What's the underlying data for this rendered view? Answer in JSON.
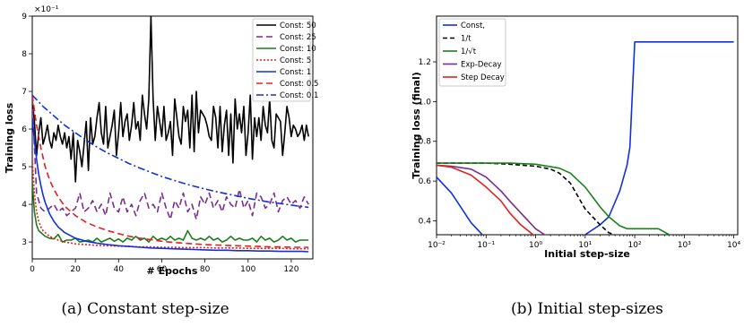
{
  "chart_data": [
    {
      "type": "line",
      "caption": "(a) Constant step-size",
      "xlabel": "# Epochs",
      "ylabel": "Training loss",
      "offset_label": "×10⁻¹",
      "xlim": [
        0,
        130
      ],
      "ylim": [
        2.55,
        9.0
      ],
      "xticks": [
        0,
        20,
        40,
        60,
        80,
        100,
        120
      ],
      "yticks": [
        3,
        4,
        5,
        6,
        7,
        8,
        9
      ],
      "legend_position": "top-right",
      "series": [
        {
          "name": "Const: 50",
          "color": "#000000",
          "dash": "solid",
          "x": [
            0,
            1,
            2,
            3,
            4,
            5,
            6,
            7,
            8,
            9,
            10,
            11,
            12,
            13,
            14,
            15,
            16,
            17,
            18,
            19,
            20,
            21,
            22,
            23,
            24,
            25,
            26,
            27,
            28,
            29,
            30,
            31,
            32,
            33,
            34,
            35,
            36,
            37,
            38,
            39,
            40,
            41,
            42,
            43,
            44,
            45,
            46,
            47,
            48,
            49,
            50,
            51,
            52,
            53,
            54,
            55,
            56,
            57,
            58,
            59,
            60,
            61,
            62,
            63,
            64,
            65,
            66,
            67,
            68,
            69,
            70,
            71,
            72,
            73,
            74,
            75,
            76,
            77,
            78,
            79,
            80,
            81,
            82,
            83,
            84,
            85,
            86,
            87,
            88,
            89,
            90,
            91,
            92,
            93,
            94,
            95,
            96,
            97,
            98,
            99,
            100,
            101,
            102,
            103,
            104,
            105,
            106,
            107,
            108,
            109,
            110,
            111,
            112,
            113,
            114,
            115,
            116,
            117,
            118,
            119,
            120,
            121,
            122,
            123,
            124,
            125,
            126,
            127,
            128
          ],
          "y": [
            6.8,
            6.2,
            5.3,
            5.9,
            6.3,
            5.6,
            5.8,
            6.1,
            5.7,
            5.5,
            5.9,
            5.7,
            6.1,
            5.8,
            5.6,
            5.9,
            5.5,
            5.8,
            5.2,
            5.9,
            4.6,
            5.7,
            5.4,
            5.0,
            5.6,
            6.2,
            4.9,
            6.3,
            5.6,
            5.8,
            6.3,
            6.7,
            5.9,
            5.6,
            6.6,
            5.5,
            5.8,
            6.1,
            6.5,
            5.3,
            5.9,
            6.7,
            5.8,
            6.2,
            6.4,
            5.7,
            6.1,
            6.7,
            6.0,
            6.2,
            5.7,
            6.9,
            6.4,
            6.0,
            6.8,
            9.0,
            6.8,
            5.7,
            6.6,
            6.2,
            5.8,
            6.6,
            5.7,
            5.9,
            6.2,
            5.3,
            6.8,
            6.3,
            5.8,
            5.6,
            6.6,
            6.2,
            6.5,
            5.5,
            6.9,
            5.4,
            7.0,
            5.9,
            6.5,
            6.4,
            6.3,
            6.1,
            5.8,
            5.7,
            6.6,
            6.3,
            5.5,
            6.6,
            5.4,
            6.1,
            6.5,
            5.3,
            6.4,
            5.1,
            6.8,
            6.0,
            6.4,
            5.9,
            6.6,
            5.3,
            5.9,
            6.9,
            5.2,
            6.3,
            5.8,
            6.3,
            5.7,
            6.6,
            6.1,
            5.9,
            6.8,
            5.7,
            5.5,
            6.4,
            6.3,
            6.2,
            5.3,
            5.9,
            6.6,
            6.3,
            5.8,
            6.1,
            6.0,
            5.8,
            5.9,
            6.1,
            5.7,
            6.1,
            5.8
          ]
        },
        {
          "name": "Const: 25",
          "color": "#7b2d8e",
          "dash": "7,4",
          "x": [
            0,
            2,
            4,
            6,
            8,
            10,
            12,
            14,
            16,
            18,
            20,
            22,
            24,
            26,
            28,
            30,
            32,
            34,
            36,
            38,
            40,
            42,
            44,
            46,
            48,
            50,
            52,
            54,
            56,
            58,
            60,
            62,
            64,
            66,
            68,
            70,
            72,
            74,
            76,
            78,
            80,
            82,
            84,
            86,
            88,
            90,
            92,
            94,
            96,
            98,
            100,
            102,
            104,
            106,
            108,
            110,
            112,
            114,
            116,
            118,
            120,
            122,
            124,
            126,
            128
          ],
          "y": [
            6.8,
            4.3,
            3.9,
            3.8,
            3.9,
            4.0,
            3.8,
            3.9,
            3.7,
            3.8,
            3.9,
            4.3,
            3.8,
            3.9,
            4.1,
            3.8,
            4.0,
            3.7,
            4.3,
            3.9,
            3.8,
            4.2,
            3.8,
            4.0,
            3.7,
            4.1,
            4.3,
            3.9,
            4.0,
            3.8,
            4.3,
            3.9,
            3.6,
            4.1,
            3.9,
            4.3,
            3.8,
            4.0,
            3.6,
            4.2,
            4.0,
            4.3,
            3.9,
            4.1,
            3.8,
            4.2,
            4.0,
            3.9,
            4.4,
            3.9,
            4.1,
            3.7,
            4.3,
            4.2,
            3.9,
            4.0,
            4.3,
            3.8,
            4.1,
            4.2,
            4.0,
            4.1,
            3.9,
            4.2,
            4.0
          ]
        },
        {
          "name": "Const: 10",
          "color": "#1a7f1a",
          "dash": "solid",
          "x": [
            0,
            1,
            2,
            3,
            4,
            5,
            6,
            8,
            10,
            12,
            14,
            16,
            18,
            20,
            22,
            24,
            26,
            28,
            30,
            32,
            34,
            36,
            38,
            40,
            42,
            44,
            46,
            48,
            50,
            52,
            54,
            56,
            58,
            60,
            62,
            64,
            66,
            68,
            70,
            72,
            74,
            76,
            78,
            80,
            82,
            84,
            86,
            88,
            90,
            92,
            94,
            96,
            98,
            100,
            102,
            104,
            106,
            108,
            110,
            112,
            114,
            116,
            118,
            120,
            122,
            124,
            126,
            128
          ],
          "y": [
            4.6,
            3.8,
            3.45,
            3.3,
            3.25,
            3.2,
            3.15,
            3.1,
            3.08,
            3.2,
            3.0,
            3.05,
            3.05,
            3.1,
            3.0,
            3.02,
            3.05,
            3.0,
            3.1,
            3.0,
            3.05,
            3.1,
            3.02,
            3.08,
            3.0,
            3.1,
            3.05,
            3.15,
            3.05,
            3.1,
            3.0,
            3.15,
            3.05,
            3.1,
            3.05,
            3.15,
            3.05,
            3.1,
            3.05,
            3.3,
            3.1,
            3.05,
            3.1,
            3.05,
            3.15,
            3.05,
            3.1,
            3.0,
            3.05,
            3.15,
            3.05,
            3.1,
            3.05,
            3.05,
            3.1,
            3.0,
            3.15,
            3.05,
            3.1,
            3.0,
            3.05,
            3.15,
            3.05,
            3.1,
            3.0,
            3.05,
            3.05,
            3.05
          ]
        },
        {
          "name": "Const: 5",
          "color": "#e6201e",
          "dash": "2,2",
          "x": [
            0,
            1,
            2,
            3,
            4,
            5,
            6,
            8,
            10,
            12,
            15,
            20,
            25,
            30,
            35,
            40,
            45,
            50,
            55,
            60,
            65,
            70,
            75,
            80,
            85,
            90,
            95,
            100,
            105,
            110,
            115,
            120,
            125,
            128
          ],
          "y": [
            5.2,
            4.3,
            3.8,
            3.55,
            3.4,
            3.3,
            3.25,
            3.15,
            3.1,
            3.05,
            3.0,
            2.95,
            2.93,
            2.91,
            2.9,
            2.89,
            2.88,
            2.87,
            2.87,
            2.86,
            2.86,
            2.85,
            2.85,
            2.85,
            2.84,
            2.84,
            2.84,
            2.83,
            2.83,
            2.83,
            2.83,
            2.82,
            2.82,
            2.82
          ]
        },
        {
          "name": "Const: 1",
          "color": "#1030e0",
          "dash": "solid",
          "x": [
            0,
            1,
            2,
            3,
            4,
            5,
            6,
            8,
            10,
            12,
            15,
            20,
            25,
            30,
            35,
            40,
            45,
            50,
            55,
            60,
            65,
            70,
            75,
            80,
            85,
            90,
            95,
            100,
            105,
            110,
            115,
            120,
            125,
            128
          ],
          "y": [
            6.3,
            5.7,
            5.2,
            4.8,
            4.5,
            4.25,
            4.05,
            3.75,
            3.55,
            3.4,
            3.25,
            3.1,
            3.02,
            2.97,
            2.93,
            2.9,
            2.88,
            2.86,
            2.84,
            2.83,
            2.82,
            2.81,
            2.8,
            2.79,
            2.78,
            2.78,
            2.77,
            2.77,
            2.76,
            2.76,
            2.75,
            2.75,
            2.75,
            2.74
          ]
        },
        {
          "name": "Const: 0.5",
          "color": "#e6201e",
          "dash": "7,4",
          "x": [
            0,
            1,
            2,
            3,
            4,
            5,
            6,
            8,
            10,
            12,
            15,
            20,
            25,
            30,
            35,
            40,
            45,
            50,
            55,
            60,
            65,
            70,
            75,
            80,
            85,
            90,
            95,
            100,
            105,
            110,
            115,
            120,
            125,
            128
          ],
          "y": [
            6.9,
            6.5,
            6.1,
            5.8,
            5.5,
            5.25,
            5.0,
            4.65,
            4.4,
            4.2,
            3.95,
            3.7,
            3.52,
            3.4,
            3.3,
            3.22,
            3.15,
            3.1,
            3.06,
            3.02,
            2.99,
            2.97,
            2.95,
            2.93,
            2.92,
            2.91,
            2.9,
            2.89,
            2.88,
            2.87,
            2.87,
            2.86,
            2.86,
            2.86
          ]
        },
        {
          "name": "Const: 0.1",
          "color": "#1030e0",
          "dash": "8,3,2,3",
          "x": [
            0,
            5,
            10,
            15,
            20,
            25,
            30,
            35,
            40,
            45,
            50,
            55,
            60,
            65,
            70,
            75,
            80,
            85,
            90,
            95,
            100,
            105,
            110,
            115,
            120,
            125,
            128
          ],
          "y": [
            6.9,
            6.6,
            6.35,
            6.1,
            5.9,
            5.7,
            5.52,
            5.36,
            5.22,
            5.08,
            4.96,
            4.85,
            4.74,
            4.65,
            4.56,
            4.48,
            4.41,
            4.34,
            4.28,
            4.22,
            4.16,
            4.11,
            4.06,
            4.02,
            3.98,
            3.94,
            3.92
          ]
        }
      ]
    },
    {
      "type": "line",
      "caption": "(b) Initial step-sizes",
      "xlabel": "Initial step-size",
      "ylabel": "Training loss (final)",
      "xscale": "log",
      "xlim": [
        0.01,
        12000
      ],
      "ylim": [
        0.33,
        1.43
      ],
      "xticks": [
        0.01,
        0.1,
        1,
        10,
        100,
        1000,
        10000
      ],
      "xticklabels": [
        "10⁻²",
        "10⁻¹",
        "10⁰",
        "10¹",
        "10²",
        "10³",
        "10⁴"
      ],
      "yticks": [
        0.4,
        0.6,
        0.8,
        1.0,
        1.2
      ],
      "yticklabels": [
        "0.4",
        "0.6",
        "0.8",
        "1.0",
        "1.2"
      ],
      "legend_position": "top-left",
      "series": [
        {
          "name": "Const,",
          "color": "#1030e0",
          "dash": "solid",
          "x": [
            0.01,
            0.02,
            0.05,
            0.1,
            0.2,
            0.3,
            0.5,
            1,
            2,
            5,
            10,
            20,
            30,
            50,
            70,
            80,
            100,
            300,
            1000,
            3000,
            10000
          ],
          "y": [
            0.62,
            0.54,
            0.39,
            0.31,
            0.29,
            0.28,
            0.275,
            0.275,
            0.28,
            0.29,
            0.33,
            0.38,
            0.42,
            0.55,
            0.68,
            0.77,
            1.3,
            1.3,
            1.3,
            1.3,
            1.3
          ]
        },
        {
          "name": "1/t",
          "color": "#000000",
          "dash": "5,3",
          "x": [
            0.01,
            0.1,
            0.3,
            1,
            2,
            3,
            5,
            10,
            20,
            30,
            50,
            100,
            200,
            300,
            500,
            1000,
            3000,
            10000
          ],
          "y": [
            0.69,
            0.69,
            0.685,
            0.675,
            0.66,
            0.64,
            0.59,
            0.46,
            0.38,
            0.34,
            0.32,
            0.31,
            0.3,
            0.29,
            0.28,
            0.28,
            0.28,
            0.31
          ]
        },
        {
          "name": "1/√t",
          "color": "#1a7f1a",
          "dash": "solid",
          "x": [
            0.01,
            0.1,
            0.3,
            1,
            3,
            5,
            10,
            20,
            30,
            50,
            70,
            100,
            200,
            300,
            500,
            700,
            1000,
            3000,
            10000
          ],
          "y": [
            0.69,
            0.69,
            0.69,
            0.685,
            0.665,
            0.64,
            0.57,
            0.47,
            0.42,
            0.375,
            0.36,
            0.36,
            0.36,
            0.36,
            0.33,
            0.3,
            0.28,
            0.28,
            0.3
          ]
        },
        {
          "name": "Exp-Decay",
          "color": "#7b2d8e",
          "dash": "solid",
          "x": [
            0.01,
            0.02,
            0.05,
            0.1,
            0.2,
            0.3,
            0.5,
            1,
            2,
            3,
            5,
            10,
            100,
            1000,
            10000
          ],
          "y": [
            0.68,
            0.675,
            0.66,
            0.62,
            0.55,
            0.5,
            0.44,
            0.36,
            0.31,
            0.295,
            0.285,
            0.28,
            0.28,
            0.28,
            0.28
          ]
        },
        {
          "name": "Step Decay",
          "color": "#e6201e",
          "dash": "solid",
          "x": [
            0.01,
            0.02,
            0.05,
            0.1,
            0.2,
            0.3,
            0.5,
            1,
            2,
            3,
            5,
            10,
            100,
            1000,
            10000
          ],
          "y": [
            0.68,
            0.67,
            0.63,
            0.57,
            0.5,
            0.44,
            0.38,
            0.32,
            0.29,
            0.283,
            0.28,
            0.28,
            0.28,
            0.28,
            0.285
          ]
        }
      ]
    }
  ]
}
